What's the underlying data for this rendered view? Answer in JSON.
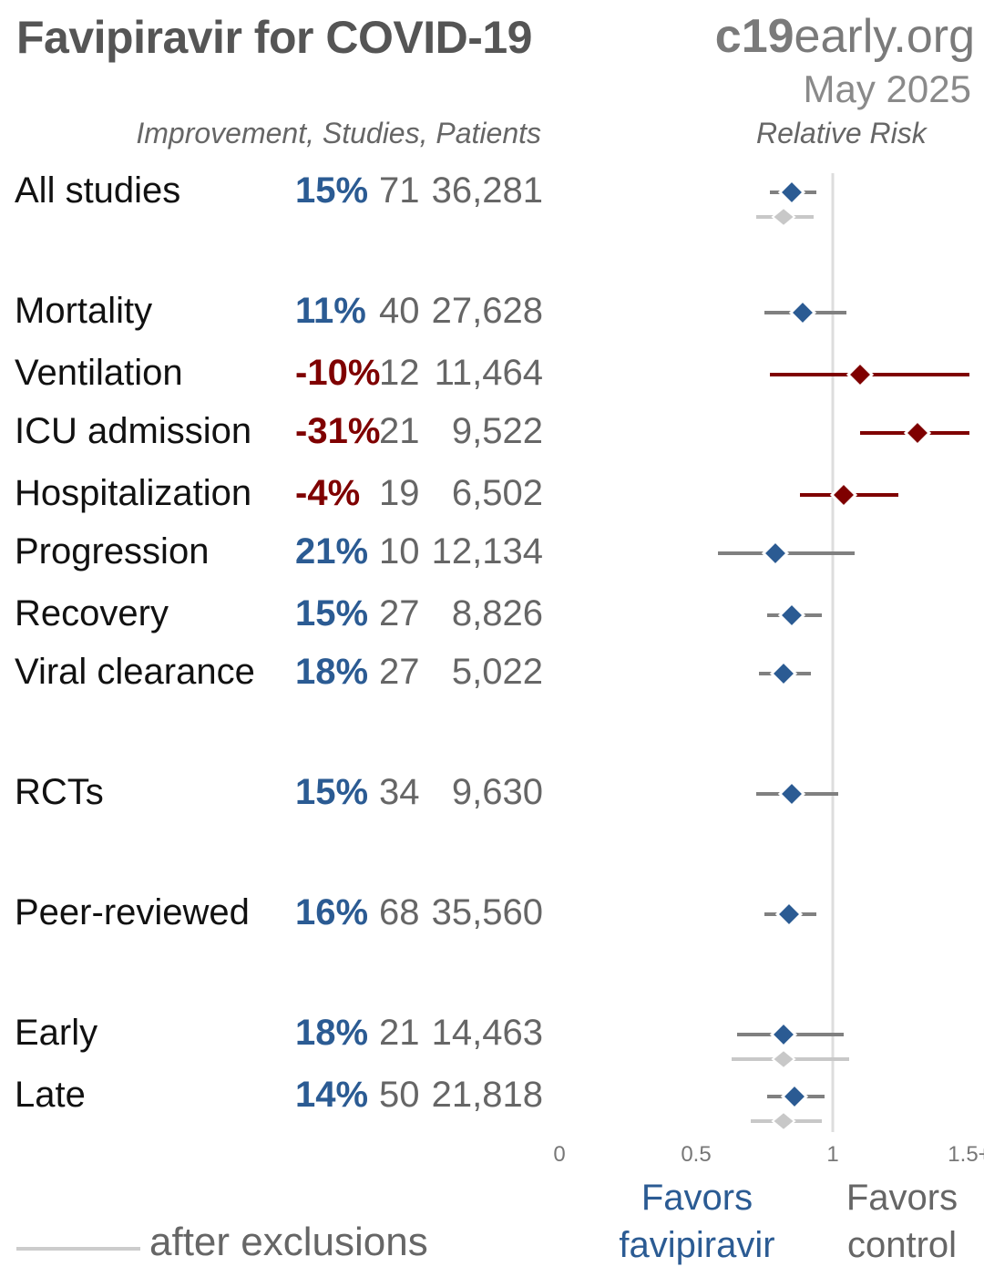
{
  "header": {
    "title": "Favipiravir for COVID-19",
    "site_prefix": "c19",
    "site_suffix": "early.org",
    "date": "May 2025",
    "col_header": "Improvement, Studies, Patients",
    "rr_header": "Relative Risk"
  },
  "legend": {
    "after_exclusions": "after exclusions",
    "favors_treatment": "Favors favipiravir",
    "favors_control": "Favors control"
  },
  "colors": {
    "favorable": "#2b5b93",
    "unfavorable": "#7f0000",
    "ci_line": "#808080",
    "exclusion": "#c8c8c8",
    "ref_line": "#dddddd"
  },
  "chart_data": {
    "type": "forest",
    "xlabel": "Relative Risk",
    "xlim": [
      0,
      1.5
    ],
    "ticks": [
      {
        "v": 0,
        "label": "0"
      },
      {
        "v": 0.5,
        "label": "0.5"
      },
      {
        "v": 1,
        "label": "1"
      },
      {
        "v": 1.5,
        "label": "1.5+"
      }
    ],
    "rows": [
      {
        "label": "All studies",
        "improvement": "15%",
        "studies": "71",
        "patients": "36,281",
        "rr": 0.85,
        "lo": 0.77,
        "hi": 0.94,
        "excl": {
          "rr": 0.82,
          "lo": 0.72,
          "hi": 0.93
        }
      },
      {
        "label": "Mortality",
        "improvement": "11%",
        "studies": "40",
        "patients": "27,628",
        "rr": 0.89,
        "lo": 0.75,
        "hi": 1.05
      },
      {
        "label": "Ventilation",
        "improvement": "-10%",
        "studies": "12",
        "patients": "11,464",
        "rr": 1.1,
        "lo": 0.77,
        "hi": 1.55
      },
      {
        "label": "ICU admission",
        "improvement": "-31%",
        "studies": "21",
        "patients": "9,522",
        "rr": 1.31,
        "lo": 1.1,
        "hi": 1.55
      },
      {
        "label": "Hospitalization",
        "improvement": "-4%",
        "studies": "19",
        "patients": "6,502",
        "rr": 1.04,
        "lo": 0.88,
        "hi": 1.24
      },
      {
        "label": "Progression",
        "improvement": "21%",
        "studies": "10",
        "patients": "12,134",
        "rr": 0.79,
        "lo": 0.58,
        "hi": 1.08
      },
      {
        "label": "Recovery",
        "improvement": "15%",
        "studies": "27",
        "patients": "8,826",
        "rr": 0.85,
        "lo": 0.76,
        "hi": 0.96
      },
      {
        "label": "Viral clearance",
        "improvement": "18%",
        "studies": "27",
        "patients": "5,022",
        "rr": 0.82,
        "lo": 0.73,
        "hi": 0.92
      },
      {
        "label": "RCTs",
        "improvement": "15%",
        "studies": "34",
        "patients": "9,630",
        "rr": 0.85,
        "lo": 0.72,
        "hi": 1.02
      },
      {
        "label": "Peer-reviewed",
        "improvement": "16%",
        "studies": "68",
        "patients": "35,560",
        "rr": 0.84,
        "lo": 0.75,
        "hi": 0.94
      },
      {
        "label": "Early",
        "improvement": "18%",
        "studies": "21",
        "patients": "14,463",
        "rr": 0.82,
        "lo": 0.65,
        "hi": 1.04,
        "excl": {
          "rr": 0.82,
          "lo": 0.63,
          "hi": 1.06
        }
      },
      {
        "label": "Late",
        "improvement": "14%",
        "studies": "50",
        "patients": "21,818",
        "rr": 0.86,
        "lo": 0.76,
        "hi": 0.97,
        "excl": {
          "rr": 0.82,
          "lo": 0.7,
          "hi": 0.96
        }
      }
    ]
  }
}
